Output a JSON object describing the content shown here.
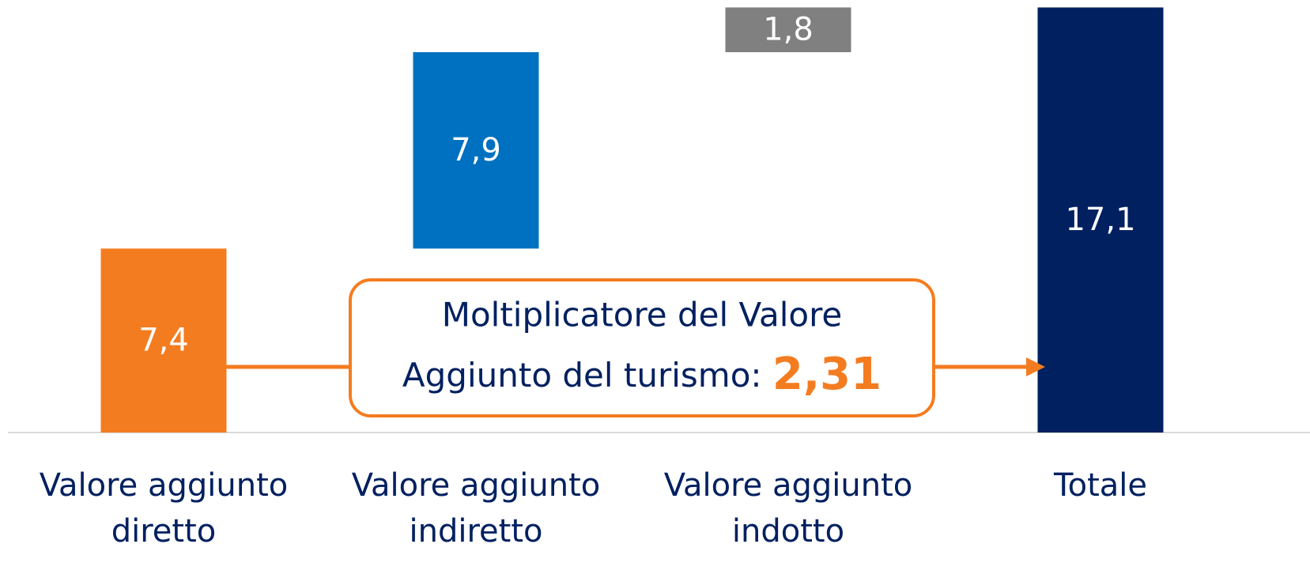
{
  "chart_data": {
    "type": "waterfall",
    "categories": [
      "Valore aggiunto diretto",
      "Valore aggiunto indiretto",
      "Valore aggiunto indotto",
      "Totale"
    ],
    "values": [
      7.4,
      7.9,
      1.8,
      17.1
    ],
    "value_labels": [
      "7,4",
      "7,9",
      "1,8",
      "17,1"
    ],
    "measure": [
      "relative",
      "relative",
      "relative",
      "total"
    ],
    "colors": [
      "#f47c20",
      "#0070c0",
      "#808080",
      "#002060"
    ],
    "ylim": [
      0,
      17.4
    ],
    "annotation": {
      "lines": [
        "Moltiplicatore del Valore",
        "Aggiunto del turismo:"
      ],
      "highlight": "2,31",
      "color": "#f47c20"
    }
  }
}
